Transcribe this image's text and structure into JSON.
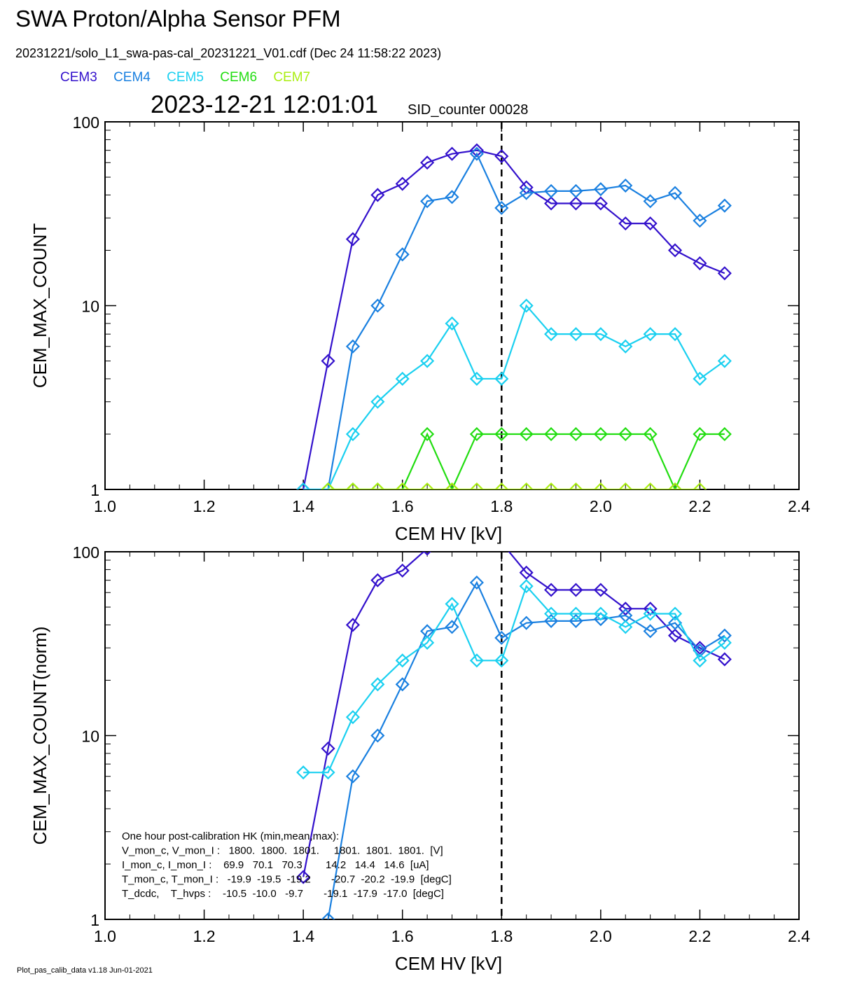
{
  "title": "SWA Proton/Alpha Sensor PFM",
  "subtitle": "20231221/solo_L1_swa-pas-cal_20231221_V01.cdf  (Dec 24 11:58:22 2023)",
  "legend": [
    {
      "name": "CEM3",
      "color": "#3311cc"
    },
    {
      "name": "CEM4",
      "color": "#1a80e0"
    },
    {
      "name": "CEM5",
      "color": "#1ad0f0"
    },
    {
      "name": "CEM6",
      "color": "#22dd11"
    },
    {
      "name": "CEM7",
      "color": "#aaee11"
    }
  ],
  "timestamp": "2023-12-21 12:01:01",
  "sid": "SID_counter 00028",
  "footer": "Plot_pas_calib_data v1.18 Jun-01-2021",
  "hk_lines": [
    "One hour post-calibration HK (min,mean,max):",
    "V_mon_c, V_mon_I :   1800.  1800.  1801.     1801.  1801.  1801.  [V]",
    "I_mon_c, I_mon_I :    69.9   70.1   70.3        14.2   14.4   14.6  [uA]",
    "T_mon_c, T_mon_I :   -19.9  -19.5  -19.2       -20.7  -20.2  -19.9  [degC]",
    "T_dcdc,    T_hvps :    -10.5  -10.0   -9.7       -19.1  -17.9  -17.0  [degC]"
  ],
  "chart_data": [
    {
      "type": "line",
      "xlabel": "CEM HV [kV]",
      "ylabel": "CEM_MAX_COUNT",
      "xlim": [
        1.0,
        2.4
      ],
      "ylim": [
        1,
        100
      ],
      "yscale": "log",
      "xticks": [
        "1.0",
        "1.2",
        "1.4",
        "1.6",
        "1.8",
        "2.0",
        "2.2",
        "2.4"
      ],
      "yticks": [
        "1",
        "10",
        "100"
      ],
      "vline_x": 1.8,
      "series": [
        {
          "name": "CEM3",
          "color": "#3311cc",
          "x": [
            1.4,
            1.45,
            1.5,
            1.55,
            1.6,
            1.65,
            1.7,
            1.75,
            1.8,
            1.85,
            1.9,
            1.95,
            2.0,
            2.05,
            2.1,
            2.15,
            2.2,
            2.25
          ],
          "y": [
            1,
            5,
            23,
            40,
            46,
            60,
            67,
            70,
            65,
            44,
            36,
            36,
            36,
            28,
            28,
            20,
            17,
            15
          ]
        },
        {
          "name": "CEM4",
          "color": "#1a80e0",
          "x": [
            1.4,
            1.45,
            1.5,
            1.55,
            1.6,
            1.65,
            1.7,
            1.75,
            1.8,
            1.85,
            1.9,
            1.95,
            2.0,
            2.05,
            2.1,
            2.15,
            2.2,
            2.25
          ],
          "y": [
            1,
            1,
            6,
            10,
            19,
            37,
            39,
            67,
            34,
            41,
            42,
            42,
            43,
            45,
            37,
            41,
            29,
            35
          ]
        },
        {
          "name": "CEM5",
          "color": "#1ad0f0",
          "x": [
            1.4,
            1.45,
            1.5,
            1.55,
            1.6,
            1.65,
            1.7,
            1.75,
            1.8,
            1.85,
            1.9,
            1.95,
            2.0,
            2.05,
            2.1,
            2.15,
            2.2,
            2.25
          ],
          "y": [
            1,
            1,
            2,
            3,
            4,
            5,
            8,
            4,
            4,
            10,
            7,
            7,
            7,
            6,
            7,
            7,
            4,
            5
          ]
        },
        {
          "name": "CEM6",
          "color": "#22dd11",
          "x": [
            1.45,
            1.5,
            1.55,
            1.6,
            1.65,
            1.7,
            1.75,
            1.8,
            1.85,
            1.9,
            1.95,
            2.0,
            2.05,
            2.1,
            2.15,
            2.2,
            2.25
          ],
          "y": [
            1,
            1,
            1,
            1,
            2,
            1,
            2,
            2,
            2,
            2,
            2,
            2,
            2,
            2,
            1,
            2,
            2
          ]
        },
        {
          "name": "CEM7",
          "color": "#aaee11",
          "x": [
            1.45,
            1.5,
            1.55,
            1.6,
            1.65,
            1.7,
            1.75,
            1.8,
            1.85,
            1.9,
            1.95,
            2.0,
            2.05,
            2.1,
            2.15,
            2.2
          ],
          "y": [
            1,
            1,
            1,
            1,
            1,
            1,
            1,
            1,
            1,
            1,
            1,
            1,
            1,
            1,
            1,
            1
          ]
        }
      ]
    },
    {
      "type": "line",
      "xlabel": "CEM HV [kV]",
      "ylabel": "CEM_MAX_COUNT(norm)",
      "xlim": [
        1.0,
        2.4
      ],
      "ylim": [
        1,
        100
      ],
      "yscale": "log",
      "xticks": [
        "1.0",
        "1.2",
        "1.4",
        "1.6",
        "1.8",
        "2.0",
        "2.2",
        "2.4"
      ],
      "yticks": [
        "1",
        "10",
        "100"
      ],
      "vline_x": 1.8,
      "series": [
        {
          "name": "CEM3",
          "color": "#3311cc",
          "x": [
            1.4,
            1.45,
            1.5,
            1.55,
            1.6,
            1.65,
            1.7,
            1.75,
            1.8,
            1.85,
            1.9,
            1.95,
            2.0,
            2.05,
            2.1,
            2.15,
            2.2,
            2.25
          ],
          "y": [
            1.7,
            8.5,
            40,
            70,
            79,
            104,
            116,
            121,
            112,
            77,
            62,
            62,
            62,
            49,
            49,
            35,
            30,
            26
          ]
        },
        {
          "name": "CEM4",
          "color": "#1a80e0",
          "x": [
            1.45,
            1.5,
            1.55,
            1.6,
            1.65,
            1.7,
            1.75,
            1.8,
            1.85,
            1.9,
            1.95,
            2.0,
            2.05,
            2.1,
            2.15,
            2.2,
            2.25
          ],
          "y": [
            1,
            6,
            10,
            19,
            37,
            39,
            68,
            34,
            41,
            42,
            42,
            43,
            45,
            37,
            41,
            29,
            35
          ]
        },
        {
          "name": "CEM5",
          "color": "#1ad0f0",
          "x": [
            1.4,
            1.45,
            1.5,
            1.55,
            1.6,
            1.65,
            1.7,
            1.75,
            1.8,
            1.85,
            1.9,
            1.95,
            2.0,
            2.05,
            2.1,
            2.15,
            2.2,
            2.25
          ],
          "y": [
            6.3,
            6.3,
            12.6,
            19,
            25.6,
            32,
            52,
            25.6,
            25.6,
            65,
            46,
            46,
            46,
            39,
            46,
            46,
            25.6,
            32
          ]
        }
      ]
    }
  ]
}
